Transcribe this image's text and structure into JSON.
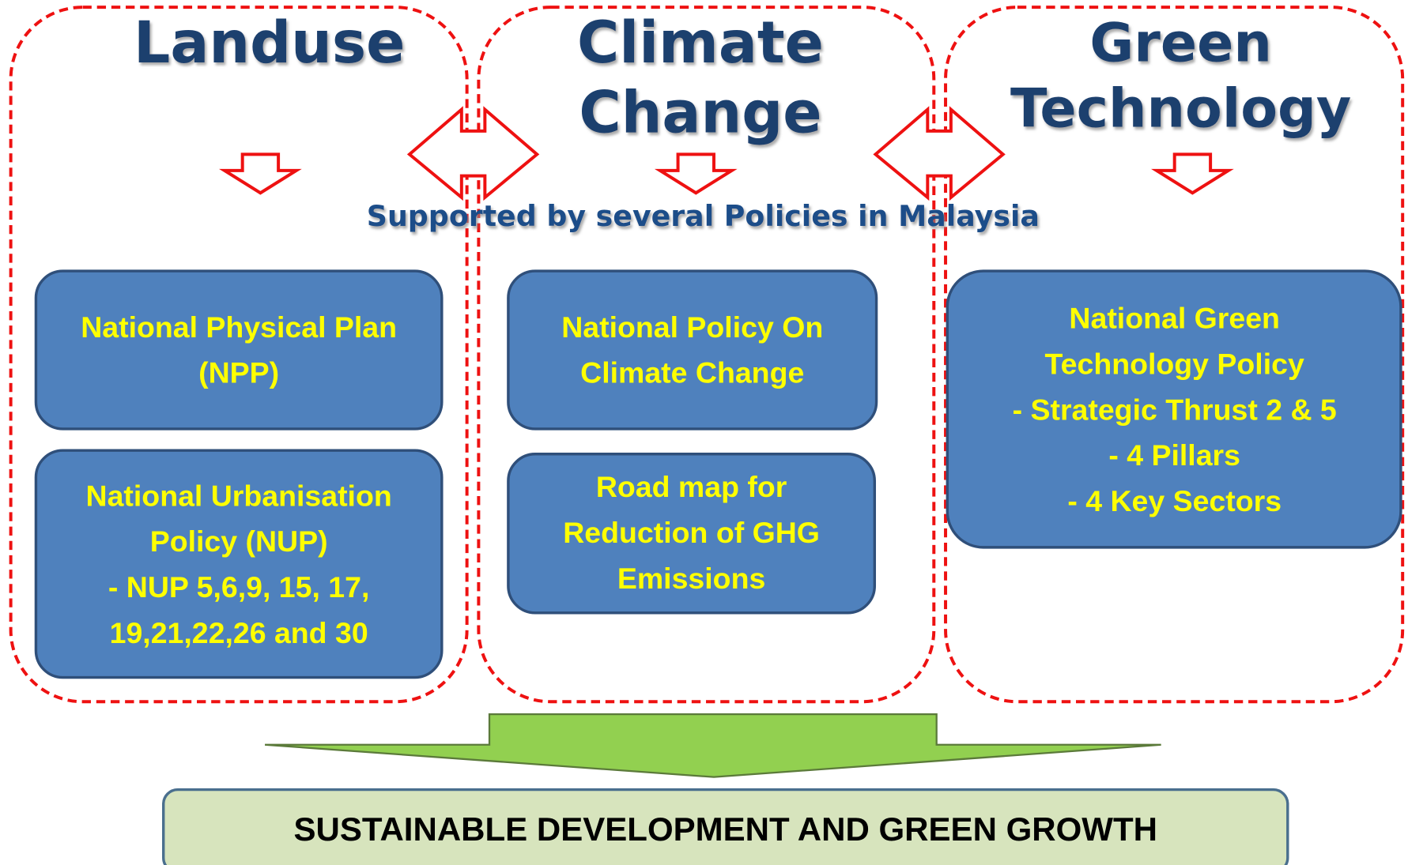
{
  "columns": [
    {
      "title": [
        "Landuse"
      ],
      "boxes": [
        [
          "National Physical Plan",
          "(NPP)"
        ],
        [
          "National Urbanisation",
          "Policy (NUP)",
          "- NUP 5,6,9, 15, 17,",
          "19,21,22,26  and 30"
        ]
      ]
    },
    {
      "title": [
        "Climate",
        "Change"
      ],
      "boxes": [
        [
          "National Policy On",
          "Climate Change"
        ],
        [
          "Road map for",
          "Reduction of GHG",
          "Emissions"
        ]
      ]
    },
    {
      "title": [
        "Green",
        "Technology"
      ],
      "boxes": [
        [
          "National Green",
          "Technology Policy",
          "- Strategic Thrust 2 & 5",
          "- 4 Pillars",
          "- 4 Key Sectors"
        ]
      ]
    }
  ],
  "note": "Supported by several Policies in Malaysia",
  "outcome": "SUSTAINABLE DEVELOPMENT AND GREEN GROWTH"
}
